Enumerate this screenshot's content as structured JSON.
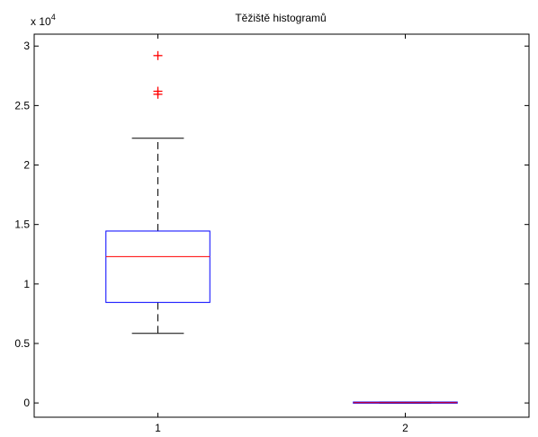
{
  "chart_data": {
    "type": "box",
    "title": "Těžiště histogramů",
    "xlabel": "",
    "ylabel": "",
    "y_exponent_label": "x 10",
    "y_exponent_power": "4",
    "y_scale_factor": 10000,
    "ylim": [
      -1200,
      31000
    ],
    "xlim": [
      0.5,
      2.5
    ],
    "grid": false,
    "yticks": [
      0,
      5000,
      10000,
      15000,
      20000,
      25000,
      30000
    ],
    "ytick_labels": [
      "0",
      "0.5",
      "1",
      "1.5",
      "2",
      "2.5",
      "3"
    ],
    "xticks": [
      1,
      2
    ],
    "xtick_labels": [
      "1",
      "2"
    ],
    "box_color": "#0000ff",
    "median_color": "#ff0000",
    "whisker_color": "#000000",
    "outlier_color": "#ff0000",
    "outlier_marker": "+",
    "boxes": [
      {
        "label": "1",
        "q1": 8450,
        "median": 12300,
        "q3": 14450,
        "whisker_low": 5850,
        "whisker_high": 22250,
        "outliers": [
          29200,
          26200,
          25950
        ]
      },
      {
        "label": "2",
        "q1": -20,
        "median": 30,
        "q3": 80,
        "whisker_low": -20,
        "whisker_high": 80,
        "outliers": []
      }
    ]
  }
}
